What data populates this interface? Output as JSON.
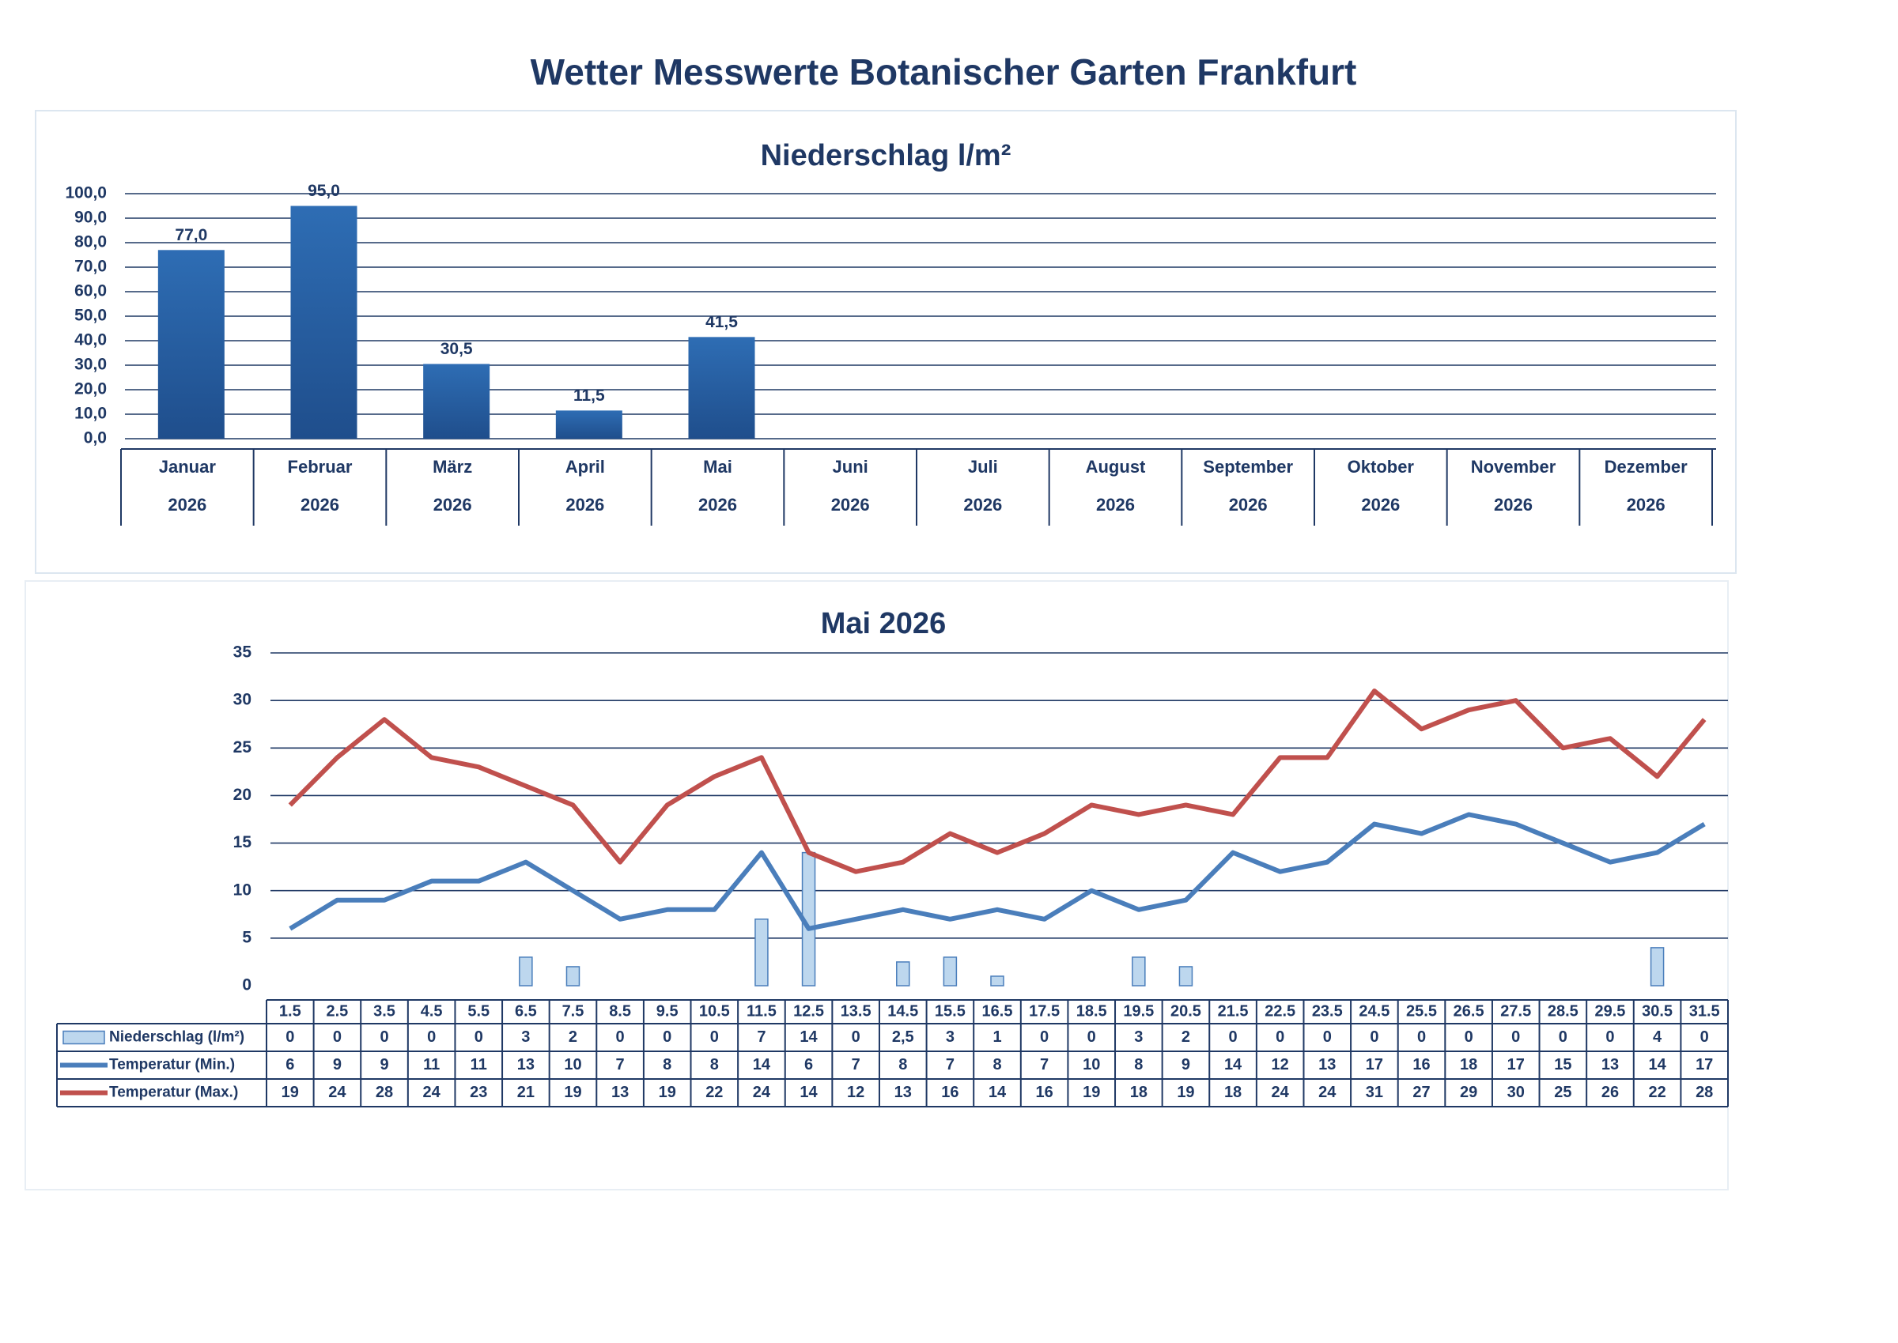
{
  "title": "Wetter Messwerte Botanischer Garten Frankfurt",
  "chart_data": [
    {
      "type": "bar",
      "title": "Niederschlag l/m²",
      "categories": [
        [
          "Januar",
          "2026"
        ],
        [
          "Februar",
          "2026"
        ],
        [
          "März",
          "2026"
        ],
        [
          "April",
          "2026"
        ],
        [
          "Mai",
          "2026"
        ],
        [
          "Juni",
          "2026"
        ],
        [
          "Juli",
          "2026"
        ],
        [
          "August",
          "2026"
        ],
        [
          "September",
          "2026"
        ],
        [
          "Oktober",
          "2026"
        ],
        [
          "November",
          "2026"
        ],
        [
          "Dezember",
          "2026"
        ]
      ],
      "values": [
        77.0,
        95.0,
        30.5,
        11.5,
        41.5,
        null,
        null,
        null,
        null,
        null,
        null,
        null
      ],
      "value_labels": [
        "77,0",
        "95,0",
        "30,5",
        "11,5",
        "41,5",
        null,
        null,
        null,
        null,
        null,
        null,
        null
      ],
      "color": "#2e6db4",
      "ylim": [
        0,
        100
      ],
      "yticks": [
        {
          "value": 0,
          "label": "0,0"
        },
        {
          "value": 10,
          "label": "10,0"
        },
        {
          "value": 20,
          "label": "20,0"
        },
        {
          "value": 30,
          "label": "30,0"
        },
        {
          "value": 40,
          "label": "40,0"
        },
        {
          "value": 50,
          "label": "50,0"
        },
        {
          "value": 60,
          "label": "60,0"
        },
        {
          "value": 70,
          "label": "70,0"
        },
        {
          "value": 80,
          "label": "80,0"
        },
        {
          "value": 90,
          "label": "90,0"
        },
        {
          "value": 100,
          "label": "100,0"
        }
      ],
      "grid": true
    },
    {
      "type": "combo",
      "title": "Mai 2026",
      "categories": [
        "1.5",
        "2.5",
        "3.5",
        "4.5",
        "5.5",
        "6.5",
        "7.5",
        "8.5",
        "9.5",
        "10.5",
        "11.5",
        "12.5",
        "13.5",
        "14.5",
        "15.5",
        "16.5",
        "17.5",
        "18.5",
        "19.5",
        "20.5",
        "21.5",
        "22.5",
        "23.5",
        "24.5",
        "25.5",
        "26.5",
        "27.5",
        "28.5",
        "29.5",
        "30.5",
        "31.5"
      ],
      "series": [
        {
          "name": "Niederschlag (l/m²)",
          "type": "bar",
          "color": "#bdd7ee",
          "values": [
            0,
            0,
            0,
            0,
            0,
            3,
            2,
            0,
            0,
            0,
            7,
            14,
            0,
            2.5,
            3,
            1,
            0,
            0,
            3,
            2,
            0,
            0,
            0,
            0,
            0,
            0,
            0,
            0,
            0,
            4,
            0
          ],
          "value_labels": [
            "0",
            "0",
            "0",
            "0",
            "0",
            "3",
            "2",
            "0",
            "0",
            "0",
            "7",
            "14",
            "0",
            "2,5",
            "3",
            "1",
            "0",
            "0",
            "3",
            "2",
            "0",
            "0",
            "0",
            "0",
            "0",
            "0",
            "0",
            "0",
            "0",
            "4",
            "0"
          ]
        },
        {
          "name": "Temperatur (Min.)",
          "type": "line",
          "color": "#4a7ebb",
          "values": [
            6,
            9,
            9,
            11,
            11,
            13,
            10,
            7,
            8,
            8,
            14,
            6,
            7,
            8,
            7,
            8,
            7,
            10,
            8,
            9,
            14,
            12,
            13,
            17,
            16,
            18,
            17,
            15,
            13,
            14,
            17
          ]
        },
        {
          "name": "Temperatur (Max.)",
          "type": "line",
          "color": "#c0504d",
          "values": [
            19,
            24,
            28,
            24,
            23,
            21,
            19,
            13,
            19,
            22,
            24,
            14,
            12,
            13,
            16,
            14,
            16,
            19,
            18,
            19,
            18,
            24,
            24,
            31,
            27,
            29,
            30,
            25,
            26,
            22,
            28
          ]
        }
      ],
      "ylim": [
        0,
        35
      ],
      "yticks": [
        0,
        5,
        10,
        15,
        20,
        25,
        30,
        35
      ],
      "grid": true
    }
  ]
}
